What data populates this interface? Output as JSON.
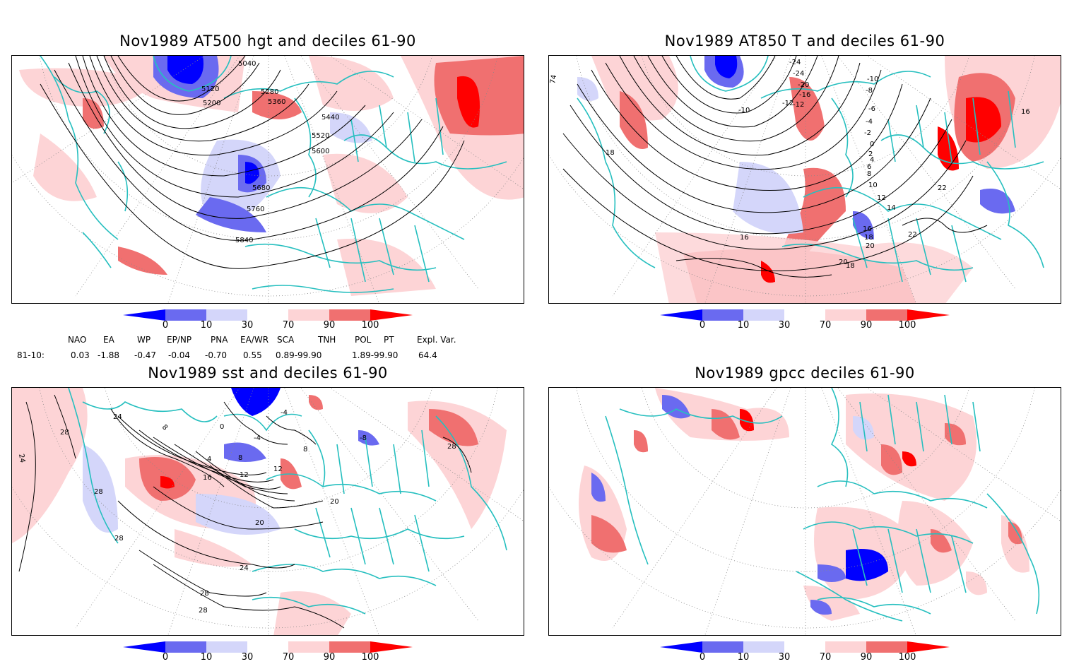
{
  "panels": [
    {
      "title": "Nov1989 AT500 hgt and deciles 61-90",
      "contour_labels": [
        "5040",
        "5120",
        "5200",
        "5280",
        "5360",
        "5440",
        "5520",
        "5600",
        "5680",
        "5760",
        "5840"
      ]
    },
    {
      "title": "Nov1989 AT850 T and deciles 61-90",
      "contour_labels": [
        "-24",
        "-24",
        "-20",
        "-16",
        "-12",
        "-10",
        "-8",
        "-6",
        "-4",
        "-2",
        "0",
        "2",
        "4",
        "6",
        "8",
        "10",
        "12",
        "14",
        "16",
        "18",
        "20",
        "22",
        "16",
        "18",
        "20",
        "22",
        "16",
        "18",
        "-10",
        "-12",
        "74"
      ]
    },
    {
      "title": "Nov1989 sst and deciles 61-90",
      "contour_labels": [
        "24",
        "28",
        "24",
        "28",
        "28",
        "28",
        "28",
        "24",
        "20",
        "20",
        "16",
        "12",
        "8",
        "4",
        "0",
        "-4",
        "8",
        "12",
        "8",
        "28",
        "-4",
        "-8"
      ]
    },
    {
      "title": "Nov1989 gpcc deciles 61-90",
      "contour_labels": []
    }
  ],
  "colorbar": {
    "ticks": [
      "0",
      "10",
      "30",
      "70",
      "90",
      "100"
    ],
    "colors": {
      "below_0": "#0000ff",
      "0_10": "#6a6af0",
      "10_30": "#d4d6fa",
      "30_70": "#ffffff",
      "70_90": "#fdd4d6",
      "90_100": "#f07070",
      "above_100": "#ff0000"
    }
  },
  "indices": {
    "headers": [
      "NAO",
      "EA",
      "WP",
      "EP/NP",
      "PNA",
      "EA/WR",
      "SCA",
      "TNH",
      "POL",
      "PT",
      "Expl. Var."
    ],
    "row_label": "81-10:",
    "values": [
      "0.03",
      "-1.88",
      "-0.47",
      "-0.04",
      "-0.70",
      "0.55",
      "0.89-99.90",
      "",
      "1.89-99.90",
      "",
      "64.4"
    ]
  },
  "map_colors": {
    "coast": "#26bfbf",
    "grid": "#888888",
    "contour": "#000000"
  }
}
